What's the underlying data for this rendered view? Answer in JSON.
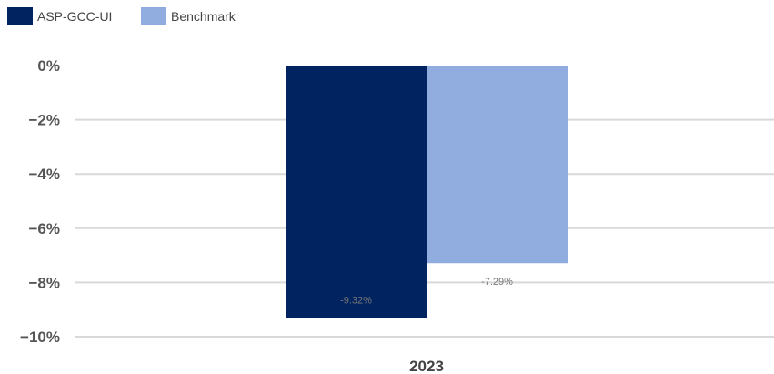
{
  "chart_data": {
    "type": "bar",
    "categories": [
      "2023"
    ],
    "series": [
      {
        "name": "ASP-GCC-UI",
        "values": [
          -9.32
        ],
        "color": "#012460",
        "label": "-9.32%"
      },
      {
        "name": "Benchmark",
        "values": [
          -7.29
        ],
        "color": "#91ACDE",
        "label": "-7.29%"
      }
    ],
    "y_ticks": [
      0,
      -2,
      -4,
      -6,
      -8,
      -10
    ],
    "y_tick_labels": [
      "0%",
      "−2%",
      "−4%",
      "−6%",
      "−8%",
      "−10%"
    ],
    "ylim": [
      -10,
      0
    ],
    "grid": true,
    "legend_position": "top-left",
    "title": "",
    "xlabel": "",
    "ylabel": ""
  }
}
